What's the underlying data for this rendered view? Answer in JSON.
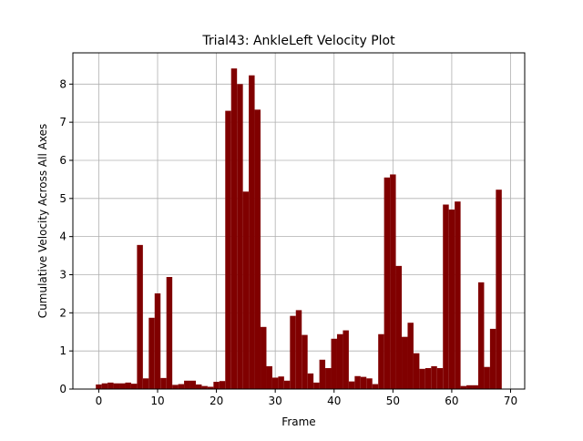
{
  "chart_data": {
    "type": "bar",
    "title": "Trial43: AnkleLeft Velocity Plot",
    "xlabel": "Frame",
    "ylabel": "Cumulative Velocity Across All Axes",
    "xlim": [
      -4.4,
      72.4
    ],
    "ylim": [
      0,
      8.82
    ],
    "xticks": [
      0,
      10,
      20,
      30,
      40,
      50,
      60,
      70
    ],
    "yticks": [
      0,
      1,
      2,
      3,
      4,
      5,
      6,
      7,
      8
    ],
    "grid": true,
    "bar_color": "#800000",
    "grid_color": "#b0b0b0",
    "x": [
      0,
      1,
      2,
      3,
      4,
      5,
      6,
      7,
      8,
      9,
      10,
      11,
      12,
      13,
      14,
      15,
      16,
      17,
      18,
      19,
      20,
      21,
      22,
      23,
      24,
      25,
      26,
      27,
      28,
      29,
      30,
      31,
      32,
      33,
      34,
      35,
      36,
      37,
      38,
      39,
      40,
      41,
      42,
      43,
      44,
      45,
      46,
      47,
      48,
      49,
      50,
      51,
      52,
      53,
      54,
      55,
      56,
      57,
      58,
      59,
      60,
      61,
      62,
      63,
      64,
      65,
      66,
      67,
      68
    ],
    "values": [
      0.12,
      0.15,
      0.17,
      0.15,
      0.15,
      0.17,
      0.14,
      3.78,
      0.28,
      1.87,
      2.51,
      0.29,
      2.94,
      0.11,
      0.13,
      0.22,
      0.22,
      0.12,
      0.08,
      0.06,
      0.19,
      0.21,
      7.3,
      8.41,
      8.0,
      5.18,
      8.23,
      7.33,
      1.63,
      0.6,
      0.3,
      0.33,
      0.22,
      1.92,
      2.07,
      1.42,
      0.41,
      0.17,
      0.77,
      0.55,
      1.32,
      1.44,
      1.54,
      0.2,
      0.34,
      0.32,
      0.28,
      0.13,
      1.44,
      5.55,
      5.63,
      3.23,
      1.37,
      1.74,
      0.94,
      0.53,
      0.55,
      0.6,
      0.55,
      4.84,
      4.71,
      4.92,
      0.08,
      0.1,
      0.1,
      2.8,
      0.58,
      1.58,
      5.23
    ]
  }
}
